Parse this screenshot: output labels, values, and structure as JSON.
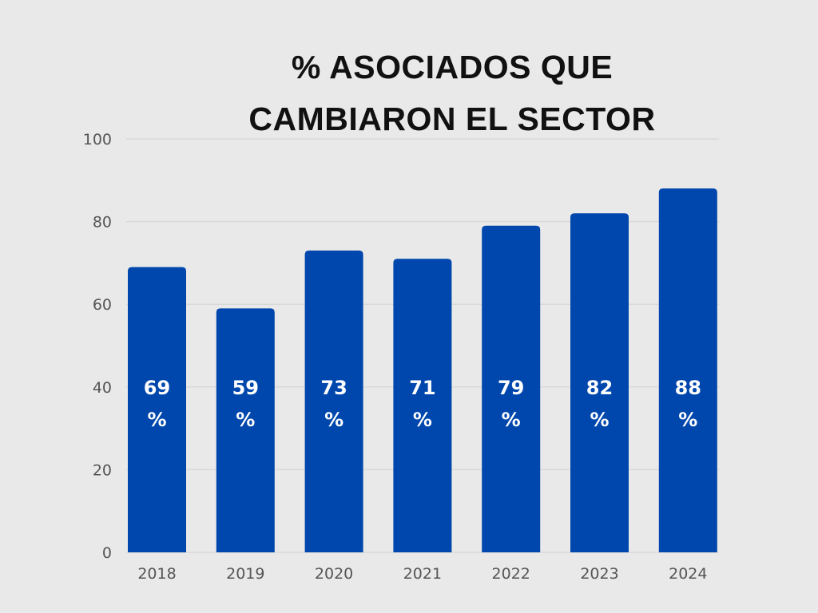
{
  "chart_data": {
    "type": "bar",
    "title_lines": [
      "% ASOCIADOS QUE",
      "CAMBIARON EL SECTOR"
    ],
    "categories": [
      "2018",
      "2019",
      "2020",
      "2021",
      "2022",
      "2023",
      "2024"
    ],
    "values": [
      69,
      59,
      73,
      71,
      79,
      82,
      88
    ],
    "data_labels": [
      [
        "69",
        "%"
      ],
      [
        "59",
        "%"
      ],
      [
        "73",
        "%"
      ],
      [
        "71",
        "%"
      ],
      [
        "79",
        "%"
      ],
      [
        "82",
        "%"
      ],
      [
        "88",
        "%"
      ]
    ],
    "yticks": [
      "0",
      "20",
      "40",
      "60",
      "80",
      "100"
    ],
    "ylim": [
      0,
      100
    ],
    "xlabel": "",
    "ylabel": "",
    "grid": true,
    "colors": {
      "bar": "#0047ad",
      "background": "#e9e9e9",
      "grid": "#d9d9d9",
      "title": "#111111",
      "ticks": "#555555",
      "data_label": "#ffffff"
    }
  }
}
